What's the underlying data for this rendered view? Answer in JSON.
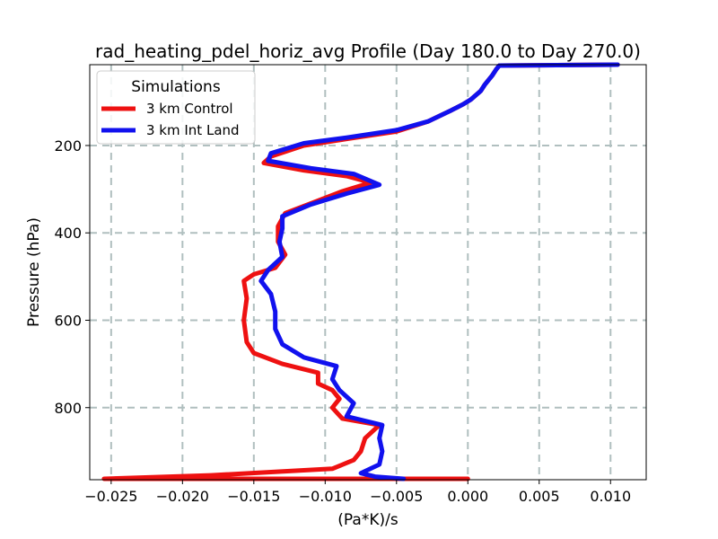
{
  "chart_data": {
    "type": "line",
    "title": "rad_heating_pdel_horiz_avg Profile (Day 180.0 to Day 270.0)",
    "xlabel": "(Pa*K)/s",
    "ylabel": "Pressure (hPa)",
    "xlim": [
      -0.0265,
      0.0125
    ],
    "ylim": [
      965,
      15
    ],
    "y_inverted": true,
    "x_ticks": [
      -0.025,
      -0.02,
      -0.015,
      -0.01,
      -0.005,
      0.0,
      0.005,
      0.01
    ],
    "x_tick_labels": [
      "−0.025",
      "−0.020",
      "−0.015",
      "−0.010",
      "−0.005",
      "0.000",
      "0.005",
      "0.010"
    ],
    "y_ticks": [
      200,
      400,
      600,
      800
    ],
    "y_tick_labels": [
      "200",
      "400",
      "600",
      "800"
    ],
    "grid": true,
    "legend": {
      "title": "Simulations",
      "placement": "top-left"
    },
    "series": [
      {
        "name": "3 km Control",
        "color": "#ee1111",
        "points": [
          [
            0.0105,
            15
          ],
          [
            0.0022,
            17
          ],
          [
            0.002,
            25
          ],
          [
            0.0017,
            40
          ],
          [
            0.0012,
            60
          ],
          [
            0.0009,
            75
          ],
          [
            0.0002,
            95
          ],
          [
            -0.0003,
            105
          ],
          [
            -0.0012,
            120
          ],
          [
            -0.0028,
            145
          ],
          [
            -0.005,
            168
          ],
          [
            -0.0085,
            185
          ],
          [
            -0.0115,
            200
          ],
          [
            -0.0138,
            225
          ],
          [
            -0.0143,
            240
          ],
          [
            -0.0115,
            257
          ],
          [
            -0.0085,
            270
          ],
          [
            -0.0068,
            285
          ],
          [
            -0.0088,
            305
          ],
          [
            -0.0108,
            330
          ],
          [
            -0.0128,
            355
          ],
          [
            -0.0133,
            385
          ],
          [
            -0.0133,
            420
          ],
          [
            -0.0128,
            450
          ],
          [
            -0.0135,
            480
          ],
          [
            -0.015,
            495
          ],
          [
            -0.0157,
            510
          ],
          [
            -0.0155,
            550
          ],
          [
            -0.0157,
            600
          ],
          [
            -0.0155,
            650
          ],
          [
            -0.015,
            675
          ],
          [
            -0.013,
            700
          ],
          [
            -0.0105,
            720
          ],
          [
            -0.0105,
            745
          ],
          [
            -0.0095,
            760
          ],
          [
            -0.009,
            780
          ],
          [
            -0.0095,
            800
          ],
          [
            -0.0088,
            825
          ],
          [
            -0.0062,
            840
          ],
          [
            -0.0072,
            870
          ],
          [
            -0.0075,
            900
          ],
          [
            -0.008,
            920
          ],
          [
            -0.0095,
            940
          ],
          [
            -0.018,
            955
          ],
          [
            -0.0255,
            963
          ],
          [
            0.0,
            963
          ]
        ]
      },
      {
        "name": "3 km Int Land",
        "color": "#1111ee",
        "points": [
          [
            0.0105,
            15
          ],
          [
            0.0022,
            17
          ],
          [
            0.002,
            25
          ],
          [
            0.0017,
            40
          ],
          [
            0.0012,
            60
          ],
          [
            0.0009,
            75
          ],
          [
            0.0002,
            95
          ],
          [
            -0.0003,
            105
          ],
          [
            -0.0012,
            120
          ],
          [
            -0.0028,
            145
          ],
          [
            -0.005,
            165
          ],
          [
            -0.0085,
            182
          ],
          [
            -0.0115,
            195
          ],
          [
            -0.0138,
            218
          ],
          [
            -0.014,
            235
          ],
          [
            -0.011,
            252
          ],
          [
            -0.008,
            265
          ],
          [
            -0.0062,
            290
          ],
          [
            -0.0085,
            310
          ],
          [
            -0.011,
            335
          ],
          [
            -0.013,
            362
          ],
          [
            -0.013,
            390
          ],
          [
            -0.0132,
            420
          ],
          [
            -0.013,
            455
          ],
          [
            -0.014,
            485
          ],
          [
            -0.0145,
            510
          ],
          [
            -0.0138,
            540
          ],
          [
            -0.0135,
            580
          ],
          [
            -0.0135,
            620
          ],
          [
            -0.013,
            655
          ],
          [
            -0.0115,
            685
          ],
          [
            -0.0092,
            705
          ],
          [
            -0.0095,
            735
          ],
          [
            -0.009,
            760
          ],
          [
            -0.008,
            790
          ],
          [
            -0.0085,
            820
          ],
          [
            -0.006,
            840
          ],
          [
            -0.0062,
            870
          ],
          [
            -0.006,
            900
          ],
          [
            -0.0062,
            930
          ],
          [
            -0.0075,
            950
          ],
          [
            -0.0065,
            958
          ],
          [
            -0.0045,
            963
          ]
        ]
      }
    ]
  }
}
